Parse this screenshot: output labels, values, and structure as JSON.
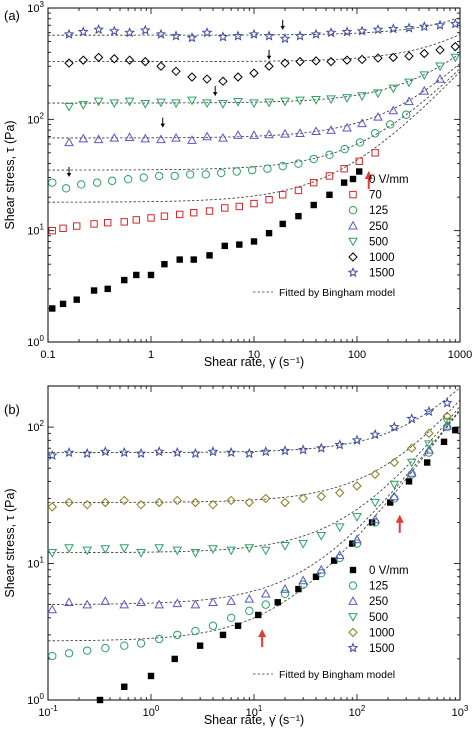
{
  "chart_data": [
    {
      "type": "scatter",
      "panel_label": "(a)",
      "xlabel": "Shear rate, γ̇ (s⁻¹)",
      "ylabel": "Shear stress, τ (Pa)",
      "xscale": "log",
      "yscale": "log",
      "xlim": [
        0.1,
        1000
      ],
      "ylim": [
        1,
        1000
      ],
      "x_ticks": [
        {
          "v": 0.1,
          "label": "0.1"
        },
        {
          "v": 1,
          "label": "1"
        },
        {
          "v": 10,
          "label": "10"
        },
        {
          "v": 100,
          "label": "100"
        },
        {
          "v": 1000,
          "label": "1000"
        }
      ],
      "y_ticks": [
        {
          "v": 1,
          "label": "10⁰"
        },
        {
          "v": 10,
          "label": "10¹"
        },
        {
          "v": 100,
          "label": "10²"
        },
        {
          "v": 1000,
          "label": "10³"
        }
      ],
      "legend_position": "bottom-right",
      "series": [
        {
          "name": "0 V/mm",
          "marker": "square-filled",
          "color": "#000000",
          "fit": false,
          "x": [
            0.11,
            0.14,
            0.19,
            0.28,
            0.38,
            0.55,
            0.72,
            1.0,
            1.35,
            1.9,
            2.6,
            3.7,
            5.2,
            7.2,
            10,
            14,
            19,
            27,
            38,
            54,
            75,
            105
          ],
          "y": [
            2.0,
            2.2,
            2.4,
            2.9,
            3.0,
            3.6,
            4.0,
            4.0,
            5.0,
            5.5,
            5.5,
            6.0,
            7.3,
            7.5,
            8.0,
            9.5,
            11.5,
            13.5,
            17,
            21,
            27,
            34
          ]
        },
        {
          "name": "70",
          "marker": "square-open",
          "color": "#d62728",
          "fit": true,
          "tau_y": 18,
          "eta": 0.25,
          "x": [
            0.11,
            0.14,
            0.19,
            0.28,
            0.38,
            0.55,
            0.72,
            1.0,
            1.35,
            1.9,
            2.6,
            3.7,
            5.2,
            7.2,
            10,
            14,
            19,
            27,
            38,
            54,
            75,
            105,
            150
          ],
          "y": [
            10,
            10.5,
            11,
            11.5,
            11.8,
            12,
            12.5,
            13,
            13.5,
            14,
            14.5,
            15,
            16,
            16.5,
            17.5,
            19,
            21,
            23,
            27,
            31,
            36,
            42,
            50
          ]
        },
        {
          "name": "125",
          "marker": "circle-open",
          "color": "#2ca25f",
          "fit": true,
          "tau_y": 35,
          "eta": 0.25,
          "x": [
            0.11,
            0.15,
            0.21,
            0.3,
            0.42,
            0.6,
            0.85,
            1.2,
            1.7,
            2.4,
            3.4,
            4.8,
            6.8,
            9.6,
            13.5,
            19,
            27,
            38,
            54,
            76,
            107,
            150,
            210,
            300
          ],
          "y": [
            27,
            24,
            26,
            27,
            28,
            29,
            30,
            31,
            31,
            32,
            32,
            33,
            34,
            35,
            36,
            38,
            40,
            44,
            48,
            54,
            62,
            75,
            90,
            110
          ]
        },
        {
          "name": "250",
          "marker": "triangle-up-open",
          "color": "#5b57c8",
          "fit": true,
          "tau_y": 68,
          "eta": 0.25,
          "x": [
            0.16,
            0.22,
            0.31,
            0.44,
            0.62,
            0.88,
            1.25,
            1.75,
            2.5,
            3.5,
            5,
            7,
            10,
            14,
            20,
            28,
            40,
            56,
            80,
            112,
            160,
            225,
            320,
            450,
            640
          ],
          "y": [
            62,
            67,
            66,
            68,
            69,
            67,
            66,
            68,
            65,
            70,
            68,
            72,
            72,
            73,
            74,
            75,
            78,
            80,
            84,
            92,
            105,
            120,
            145,
            180,
            230
          ]
        },
        {
          "name": "500",
          "marker": "triangle-down-open",
          "color": "#2ca25f",
          "fit": true,
          "tau_y": 140,
          "eta": 0.25,
          "x": [
            0.16,
            0.22,
            0.31,
            0.44,
            0.62,
            0.88,
            1.25,
            1.75,
            2.5,
            3.5,
            5,
            7,
            10,
            14,
            20,
            28,
            40,
            56,
            80,
            112,
            160,
            225,
            320,
            450,
            640,
            900
          ],
          "y": [
            130,
            135,
            145,
            140,
            145,
            138,
            142,
            140,
            148,
            140,
            138,
            144,
            140,
            142,
            145,
            148,
            150,
            152,
            156,
            162,
            172,
            190,
            215,
            250,
            300,
            360
          ]
        },
        {
          "name": "1000",
          "marker": "diamond-open",
          "color": "#000000",
          "fit": true,
          "tau_y": 330,
          "eta": 0.25,
          "x": [
            0.16,
            0.22,
            0.31,
            0.44,
            0.62,
            0.88,
            1.25,
            1.75,
            2.5,
            3.5,
            5,
            7,
            10,
            14,
            20,
            28,
            40,
            56,
            80,
            112,
            160,
            225,
            320,
            450,
            640,
            900
          ],
          "y": [
            320,
            340,
            360,
            350,
            340,
            330,
            300,
            270,
            240,
            230,
            220,
            240,
            260,
            300,
            320,
            330,
            335,
            330,
            340,
            345,
            355,
            360,
            370,
            390,
            420,
            450
          ]
        },
        {
          "name": "1500",
          "marker": "star-open",
          "color": "#3b49a0",
          "fit": true,
          "tau_y": 570,
          "eta": 0.25,
          "x": [
            0.16,
            0.22,
            0.31,
            0.44,
            0.62,
            0.88,
            1.25,
            1.75,
            2.5,
            3.5,
            5,
            7,
            10,
            14,
            20,
            28,
            40,
            56,
            80,
            112,
            160,
            225,
            320,
            450,
            640,
            900
          ],
          "y": [
            580,
            610,
            640,
            620,
            600,
            630,
            580,
            560,
            540,
            600,
            550,
            560,
            580,
            560,
            530,
            560,
            580,
            600,
            610,
            620,
            640,
            650,
            660,
            680,
            700,
            720
          ]
        }
      ],
      "fit_legend": "Fitted by Bingham model",
      "annotations": [
        {
          "type": "arrow-down",
          "color": "#000000",
          "x": 0.16,
          "y": 31
        },
        {
          "type": "arrow-down",
          "color": "#000000",
          "x": 1.3,
          "y": 86
        },
        {
          "type": "arrow-down",
          "color": "#000000",
          "x": 4.2,
          "y": 165
        },
        {
          "type": "arrow-down",
          "color": "#000000",
          "x": 14,
          "y": 350
        },
        {
          "type": "arrow-down",
          "color": "#000000",
          "x": 19,
          "y": 650
        },
        {
          "type": "arrow-up",
          "color": "#e53935",
          "x": 130,
          "y": 33
        }
      ]
    },
    {
      "type": "scatter",
      "panel_label": "(b)",
      "xlabel": "Shear rate, γ̇ (s⁻¹)",
      "ylabel": "Shear stress, τ (Pa)",
      "xscale": "log",
      "yscale": "log",
      "xlim": [
        0.1,
        1000
      ],
      "ylim": [
        1,
        200
      ],
      "x_ticks": [
        {
          "v": 0.1,
          "label": "10⁻¹"
        },
        {
          "v": 1,
          "label": "10⁰"
        },
        {
          "v": 10,
          "label": "10¹"
        },
        {
          "v": 100,
          "label": "10²"
        },
        {
          "v": 1000,
          "label": "10³"
        }
      ],
      "y_ticks": [
        {
          "v": 1,
          "label": "10⁰"
        },
        {
          "v": 10,
          "label": "10¹"
        },
        {
          "v": 100,
          "label": "10²"
        }
      ],
      "legend_position": "bottom-right",
      "series": [
        {
          "name": "0 V/mm",
          "marker": "square-filled",
          "color": "#000000",
          "fit": false,
          "x": [
            0.32,
            0.55,
            1.0,
            1.7,
            3.0,
            5.0,
            7.0,
            11,
            17,
            27,
            40,
            60,
            90,
            140,
            210,
            320,
            480,
            700,
            900
          ],
          "y": [
            1.0,
            1.25,
            1.5,
            2.0,
            2.5,
            3.0,
            3.5,
            4.2,
            5.2,
            6.5,
            8.0,
            10.5,
            14,
            20,
            28,
            40,
            55,
            78,
            95
          ]
        },
        {
          "name": "125",
          "marker": "circle-open",
          "color": "#2ca25f",
          "fit": true,
          "tau_y": 2.7,
          "eta": 0.13,
          "x": [
            0.11,
            0.16,
            0.24,
            0.36,
            0.55,
            0.8,
            1.2,
            1.8,
            2.7,
            4.0,
            6.0,
            9.0,
            13,
            20,
            30,
            45,
            68,
            100,
            150,
            230,
            340,
            500,
            750
          ],
          "y": [
            2.1,
            2.2,
            2.3,
            2.4,
            2.5,
            2.6,
            2.8,
            3.0,
            3.2,
            3.5,
            4.0,
            4.5,
            5.0,
            6.0,
            7.0,
            8.5,
            11,
            14,
            20,
            30,
            45,
            65,
            100
          ]
        },
        {
          "name": "250",
          "marker": "triangle-up-open",
          "color": "#5b57c8",
          "fit": true,
          "tau_y": 5.0,
          "eta": 0.13,
          "x": [
            0.11,
            0.16,
            0.24,
            0.36,
            0.55,
            0.8,
            1.2,
            1.8,
            2.7,
            4.0,
            6.0,
            9.0,
            13,
            20,
            30,
            45,
            68,
            100,
            150,
            230,
            340,
            500,
            750
          ],
          "y": [
            4.6,
            5.2,
            5.0,
            5.3,
            5.0,
            5.2,
            5.0,
            5.1,
            5.0,
            5.2,
            5.3,
            5.5,
            6.0,
            6.5,
            7.5,
            9.0,
            11.5,
            15,
            21,
            31,
            46,
            68,
            102
          ]
        },
        {
          "name": "500",
          "marker": "triangle-down-open",
          "color": "#2ca25f",
          "fit": true,
          "tau_y": 12,
          "eta": 0.13,
          "x": [
            0.11,
            0.16,
            0.24,
            0.36,
            0.55,
            0.8,
            1.2,
            1.8,
            2.7,
            4.0,
            6.0,
            9.0,
            13,
            20,
            30,
            45,
            68,
            100,
            150,
            230,
            340,
            500,
            750
          ],
          "y": [
            12,
            13,
            12.5,
            12.8,
            13,
            12,
            13,
            12.5,
            12,
            12.8,
            12.5,
            13,
            12.5,
            13.5,
            14,
            16,
            18.5,
            22,
            28,
            38,
            55,
            75,
            110
          ]
        },
        {
          "name": "1000",
          "marker": "diamond-open",
          "color": "#8a7a1e",
          "fit": true,
          "tau_y": 28,
          "eta": 0.13,
          "x": [
            0.11,
            0.16,
            0.24,
            0.36,
            0.55,
            0.8,
            1.2,
            1.8,
            2.7,
            4.0,
            6.0,
            9.0,
            13,
            20,
            30,
            45,
            68,
            100,
            150,
            230,
            340,
            500,
            750
          ],
          "y": [
            26,
            28,
            27,
            28,
            29,
            27,
            28,
            29,
            28,
            27,
            29,
            28,
            30,
            28,
            30,
            31,
            33,
            37,
            45,
            55,
            70,
            90,
            120
          ]
        },
        {
          "name": "1500",
          "marker": "star-open",
          "color": "#3b49a0",
          "fit": true,
          "tau_y": 65,
          "eta": 0.13,
          "x": [
            0.11,
            0.16,
            0.24,
            0.36,
            0.55,
            0.8,
            1.2,
            1.8,
            2.7,
            4.0,
            6.0,
            9.0,
            13,
            20,
            30,
            45,
            68,
            100,
            150,
            230,
            340,
            500,
            750
          ],
          "y": [
            62,
            65,
            64,
            66,
            65,
            64,
            66,
            65,
            64,
            66,
            65,
            64,
            66,
            67,
            68,
            70,
            74,
            80,
            88,
            100,
            115,
            130,
            150
          ]
        }
      ],
      "fit_legend": "Fitted by Bingham model",
      "annotations": [
        {
          "type": "arrow-up",
          "color": "#e53935",
          "x": 12,
          "y": 3.2
        },
        {
          "type": "arrow-up",
          "color": "#e53935",
          "x": 260,
          "y": 22
        }
      ]
    }
  ]
}
